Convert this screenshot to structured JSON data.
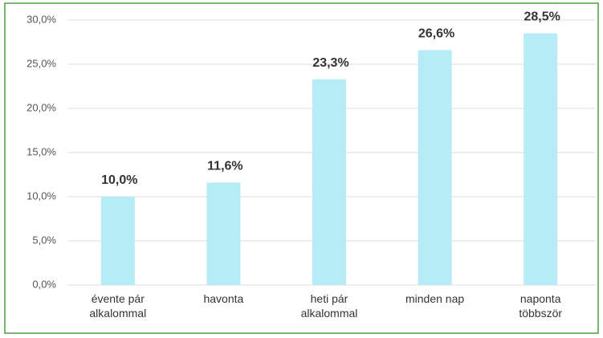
{
  "chart_data": {
    "type": "bar",
    "categories": [
      "évente pár alkalommal",
      "havonta",
      "heti pár alkalommal",
      "minden nap",
      "naponta többször"
    ],
    "values": [
      10.0,
      11.6,
      23.3,
      26.6,
      28.5
    ],
    "value_labels": [
      "10,0%",
      "11,6%",
      "23,3%",
      "26,6%",
      "28,5%"
    ],
    "color": "#b6ecf6",
    "ylim": [
      0,
      30
    ],
    "yticks": [
      {
        "value": 0,
        "label": "0,0%"
      },
      {
        "value": 5,
        "label": "5,0%"
      },
      {
        "value": 10,
        "label": "10,0%"
      },
      {
        "value": 15,
        "label": "15,0%"
      },
      {
        "value": 20,
        "label": "20,0%"
      },
      {
        "value": 25,
        "label": "25,0%"
      },
      {
        "value": 30,
        "label": "30,0%"
      }
    ],
    "grid": true
  }
}
